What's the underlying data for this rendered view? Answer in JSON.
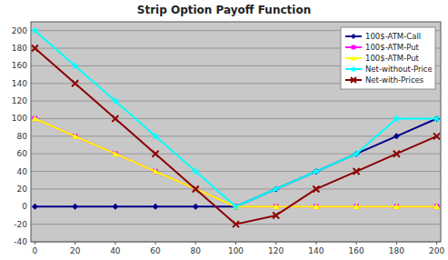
{
  "chart_data": {
    "type": "line",
    "title": "Strip Option Payoff Function",
    "x": [
      0,
      20,
      40,
      60,
      80,
      100,
      120,
      140,
      160,
      180,
      200
    ],
    "series": [
      {
        "name": "100$-ATM-Call",
        "color": "#00008B",
        "marker": "diamond",
        "values": [
          0,
          0,
          0,
          0,
          0,
          0,
          20,
          40,
          60,
          80,
          100
        ]
      },
      {
        "name": "100$-ATM-Put",
        "color": "#FF00FF",
        "marker": "square",
        "values": [
          100,
          80,
          60,
          40,
          20,
          0,
          0,
          0,
          0,
          0,
          0
        ]
      },
      {
        "name": "100$-ATM-Put",
        "color": "#FFFF00",
        "marker": "triangle",
        "values": [
          100,
          80,
          60,
          40,
          20,
          0,
          0,
          0,
          0,
          0,
          0
        ]
      },
      {
        "name": "Net-without-Price",
        "color": "#00FFFF",
        "marker": "star",
        "values": [
          200,
          160,
          120,
          80,
          40,
          0,
          20,
          40,
          60,
          100,
          100
        ]
      },
      {
        "name": "Net-with-Prices",
        "color": "#8B0000",
        "marker": "x",
        "values": [
          180,
          140,
          100,
          60,
          20,
          -20,
          -10,
          20,
          40,
          60,
          80
        ]
      }
    ],
    "xlim": [
      -2,
      202
    ],
    "ylim": [
      -40,
      210
    ],
    "xticks": [
      0,
      20,
      40,
      60,
      80,
      100,
      120,
      140,
      160,
      180,
      200
    ],
    "yticks": [
      -40,
      -20,
      0,
      20,
      40,
      60,
      80,
      100,
      120,
      140,
      160,
      180,
      200
    ],
    "grid": true,
    "legend": "upper right"
  }
}
